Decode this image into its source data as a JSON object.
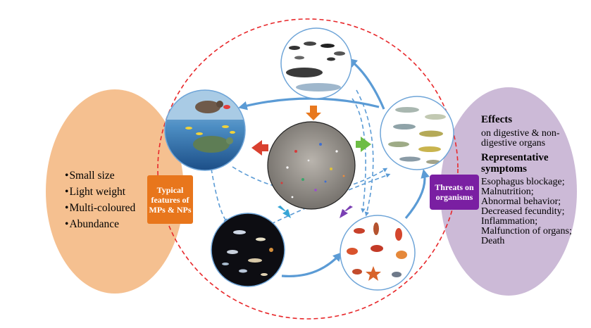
{
  "features": {
    "items": [
      "Small size",
      "Light weight",
      "Multi-coloured",
      "Abundance"
    ],
    "tag": "Typical features of MPs & NPs"
  },
  "threats": {
    "tag": "Threats on organisms",
    "effects_heading": "Effects",
    "effects_text": "on digestive & non-digestive organs",
    "symptoms_heading": "Representative symptoms",
    "symptoms": [
      "Esophagus blockage;",
      "Malnutrition;",
      "Abnormal behavior;",
      "Decreased fecundity;",
      "Inflammation;",
      "Malfunction of organs; Death"
    ]
  },
  "colors": {
    "left_oval": "#f5c090",
    "right_oval": "#ccbad7",
    "dashed_circle": "#e8282b",
    "flow_arrow": "#5b9bd5",
    "tag_orange": "#e8761c",
    "tag_purple": "#7a1fa2"
  },
  "nodes": [
    "microplastic-sand",
    "marine-mammals",
    "bird-turtle-fish",
    "pelagic-fish",
    "zooplankton",
    "crustaceans-invertebrates"
  ]
}
